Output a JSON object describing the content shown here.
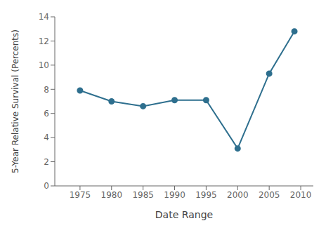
{
  "chart_data": {
    "type": "line",
    "x": [
      1975,
      1980,
      1985,
      1990,
      1995,
      2000,
      2005,
      2009
    ],
    "values": [
      7.9,
      7.0,
      6.6,
      7.1,
      7.1,
      3.1,
      9.3,
      12.8
    ],
    "xlabel": "Date Range",
    "ylabel": "5-Year Relative Survival (Percents)",
    "xlim": [
      1971,
      2012
    ],
    "ylim": [
      0,
      14
    ],
    "xticks": [
      1975,
      1980,
      1985,
      1990,
      1995,
      2000,
      2005,
      2010
    ],
    "yticks": [
      0,
      2,
      4,
      6,
      8,
      10,
      12,
      14
    ],
    "color": "#2e6f8e",
    "marker": "circle",
    "grid": false
  }
}
